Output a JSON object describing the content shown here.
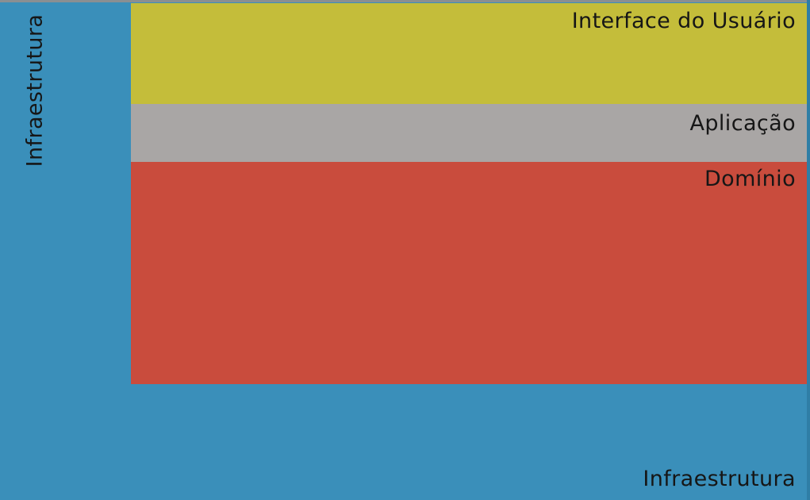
{
  "layers": {
    "user_interface": {
      "label": "Interface do Usuário",
      "color": "#c4bd3a"
    },
    "application": {
      "label": "Aplicação",
      "color": "#a9a6a5"
    },
    "domain": {
      "label": "Domínio",
      "color": "#c94c3d"
    },
    "infrastructure": {
      "vertical_label": "Infraestrutura",
      "bottom_label": "Infraestrutura",
      "color": "#3a8fba"
    }
  }
}
